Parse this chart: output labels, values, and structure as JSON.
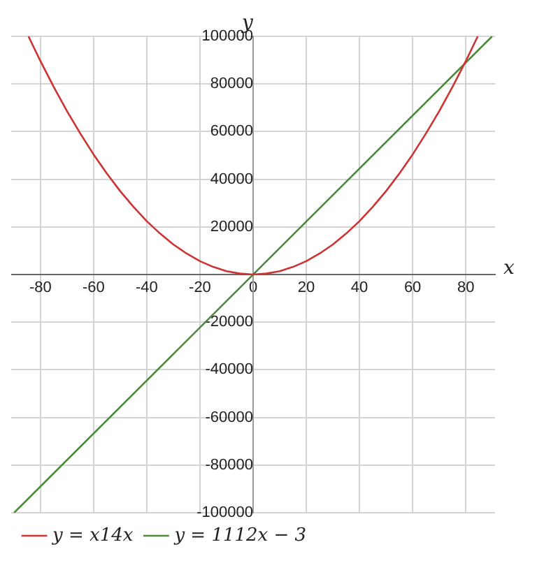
{
  "chart_data": {
    "type": "line",
    "xlabel": "x",
    "ylabel": "y",
    "xlim": [
      -91,
      91
    ],
    "ylim": [
      -100000,
      100000
    ],
    "xticks": [
      -80,
      -60,
      -40,
      -20,
      0,
      20,
      40,
      60,
      80
    ],
    "yticks": [
      -100000,
      -80000,
      -60000,
      -40000,
      -20000,
      {
        "value": 0,
        "label": null
      },
      20000,
      40000,
      60000,
      80000,
      100000
    ],
    "grid": true,
    "legend": "bottom left",
    "marker": "none",
    "line_style": "solid",
    "series": [
      {
        "name": "y = x14x",
        "color": "#cc3333",
        "x": [
          -84.5,
          -80,
          -75,
          -70,
          -65,
          -60,
          -55,
          -50,
          -45,
          -40,
          -35,
          -30,
          -25,
          -20,
          -15,
          -10,
          -5,
          0,
          5,
          10,
          15,
          20,
          25,
          30,
          35,
          40,
          45,
          50,
          55,
          60,
          65,
          70,
          75,
          80,
          84.5
        ],
        "values": [
          100000,
          89600,
          78800,
          68600,
          59200,
          50400,
          42400,
          35000,
          28400,
          22400,
          17200,
          12600,
          8800,
          5600,
          3200,
          1400,
          400,
          0,
          400,
          1400,
          3200,
          5600,
          8800,
          12600,
          17200,
          22400,
          28400,
          35000,
          42400,
          50400,
          59200,
          68600,
          78800,
          89600,
          100000
        ]
      },
      {
        "name": "y = 1112x − 3",
        "color": "#4a8a3a",
        "x": [
          -89.9,
          89.9
        ],
        "values": [
          -100000,
          100000
        ]
      }
    ]
  }
}
